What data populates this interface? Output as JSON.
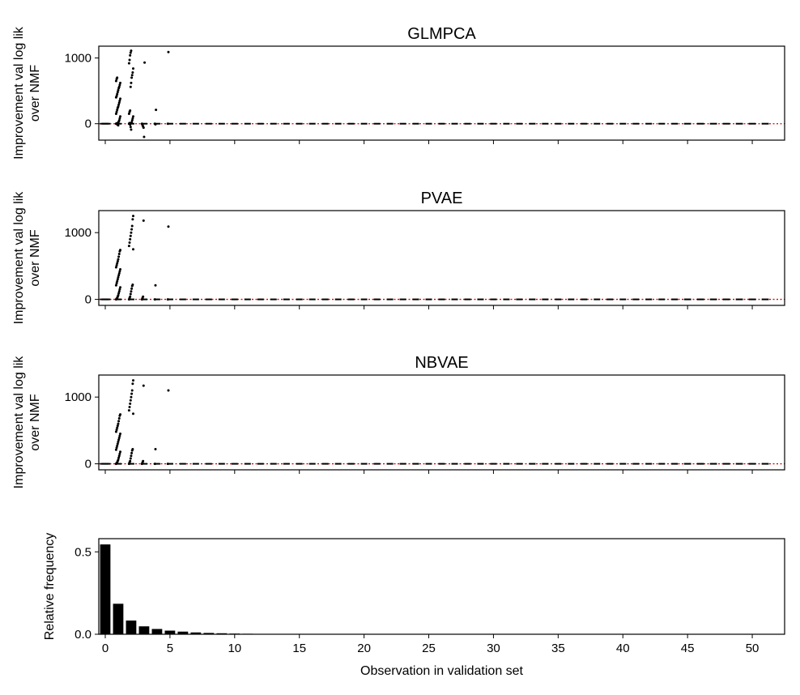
{
  "chart_data": [
    {
      "type": "scatter",
      "title": "GLMPCA",
      "ylabel": [
        "Improvement val log lik",
        "over NMF"
      ],
      "xlim": [
        -0.5,
        52.5
      ],
      "ylim": [
        -250,
        1180
      ],
      "yticks": [
        0,
        1000
      ],
      "reference_line": {
        "y": 0,
        "color": "#e00000",
        "style": "dotted"
      },
      "marker_color": "#000000",
      "clusters": [
        {
          "x": 1,
          "values": [
            0,
            5,
            -10,
            12,
            -25,
            30,
            50,
            80,
            110,
            150,
            180,
            210,
            240,
            260,
            290,
            320,
            350,
            380,
            400,
            420,
            450,
            480,
            510,
            540,
            560,
            590,
            620,
            650,
            680,
            700
          ]
        },
        {
          "x": 2,
          "values": [
            0,
            10,
            -15,
            -50,
            -90,
            20,
            50,
            80,
            110,
            150,
            180,
            200,
            560,
            620,
            700,
            740,
            780,
            840,
            920,
            970,
            1040,
            1080,
            1110
          ]
        },
        {
          "x": 3,
          "values": [
            0,
            -20,
            -40,
            -60,
            -200,
            930
          ]
        },
        {
          "x": 4,
          "values": [
            0,
            -10,
            210
          ]
        },
        {
          "x": 5,
          "values": [
            0,
            1090
          ]
        }
      ],
      "baseline_through": 51
    },
    {
      "type": "scatter",
      "title": "PVAE",
      "ylabel": [
        "Improvement val log lik",
        "over NMF"
      ],
      "xlim": [
        -0.5,
        52.5
      ],
      "ylim": [
        -90,
        1330
      ],
      "yticks": [
        0,
        1000
      ],
      "reference_line": {
        "y": 0,
        "color": "#e00000",
        "style": "dotted"
      },
      "marker_color": "#000000",
      "clusters": [
        {
          "x": 1,
          "values": [
            0,
            10,
            20,
            40,
            60,
            90,
            120,
            150,
            180,
            210,
            240,
            270,
            300,
            330,
            360,
            390,
            420,
            450,
            480,
            510,
            540,
            570,
            600,
            640,
            680,
            720,
            740
          ]
        },
        {
          "x": 2,
          "values": [
            0,
            20,
            40,
            80,
            120,
            160,
            200,
            220,
            750,
            800,
            850,
            900,
            950,
            1000,
            1050,
            1100,
            1200,
            1250
          ]
        },
        {
          "x": 3,
          "values": [
            0,
            20,
            40,
            1180
          ]
        },
        {
          "x": 4,
          "values": [
            0,
            210
          ]
        },
        {
          "x": 5,
          "values": [
            0,
            1090
          ]
        }
      ],
      "baseline_through": 51
    },
    {
      "type": "scatter",
      "title": "NBVAE",
      "ylabel": [
        "Improvement val log lik",
        "over NMF"
      ],
      "xlim": [
        -0.5,
        52.5
      ],
      "ylim": [
        -90,
        1330
      ],
      "yticks": [
        0,
        1000
      ],
      "reference_line": {
        "y": 0,
        "color": "#e00000",
        "style": "dotted"
      },
      "marker_color": "#000000",
      "clusters": [
        {
          "x": 1,
          "values": [
            0,
            10,
            20,
            40,
            60,
            90,
            120,
            150,
            180,
            210,
            240,
            270,
            300,
            330,
            360,
            390,
            420,
            450,
            480,
            510,
            540,
            570,
            600,
            640,
            680,
            720,
            740
          ]
        },
        {
          "x": 2,
          "values": [
            0,
            20,
            40,
            80,
            120,
            160,
            200,
            220,
            750,
            800,
            850,
            900,
            950,
            1000,
            1050,
            1100,
            1200,
            1250
          ]
        },
        {
          "x": 3,
          "values": [
            0,
            20,
            40,
            1170
          ]
        },
        {
          "x": 4,
          "values": [
            0,
            220
          ]
        },
        {
          "x": 5,
          "values": [
            0,
            1100
          ]
        }
      ],
      "baseline_through": 51
    },
    {
      "type": "bar",
      "ylabel": "Relative frequency",
      "xlabel": "Observation in validation set",
      "xlim": [
        -0.5,
        52.5
      ],
      "ylim": [
        0,
        0.58
      ],
      "yticks": [
        0.0,
        0.5
      ],
      "ytick_labels": [
        "0.0",
        "0.5"
      ],
      "xticks": [
        0,
        5,
        10,
        15,
        20,
        25,
        30,
        35,
        40,
        45,
        50
      ],
      "bar_color": "#000000",
      "x": [
        0,
        1,
        2,
        3,
        4,
        5,
        6,
        7,
        8,
        9,
        10,
        11,
        12,
        13,
        14,
        15,
        16,
        17,
        18,
        19,
        20
      ],
      "values": [
        0.545,
        0.185,
        0.083,
        0.048,
        0.032,
        0.022,
        0.016,
        0.011,
        0.008,
        0.006,
        0.004,
        0.003,
        0.002,
        0.002,
        0.001,
        0.001,
        0.001,
        0.001,
        0.0005,
        0.0005,
        0.0005
      ]
    }
  ]
}
